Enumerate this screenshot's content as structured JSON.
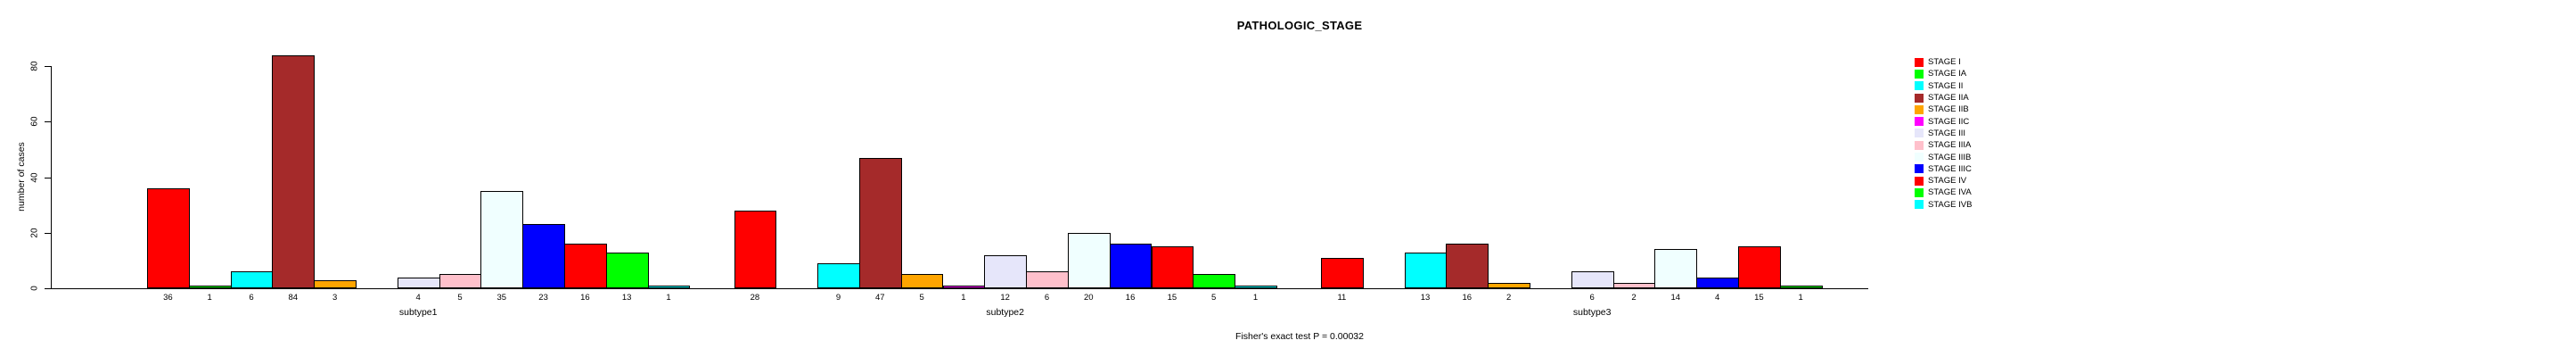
{
  "title": "PATHOLOGIC_STAGE",
  "footer": "Fisher's exact test P = 0.00032",
  "y_axis": {
    "label": "number of cases",
    "ticks": [
      0,
      20,
      40,
      60,
      80
    ],
    "max": 80
  },
  "legend": {
    "position": "right"
  },
  "chart_data": {
    "type": "bar",
    "title": "PATHOLOGIC_STAGE",
    "xlabel": "",
    "ylabel": "number of cases",
    "ylim": [
      0,
      80
    ],
    "grid": false,
    "legend_position": "right",
    "annotation": "Fisher's exact test P = 0.00032",
    "categories": [
      "subtype1",
      "subtype2",
      "subtype3"
    ],
    "series": [
      {
        "name": "STAGE I",
        "color": "#FF0000",
        "values": [
          36,
          28,
          11
        ]
      },
      {
        "name": "STAGE IA",
        "color": "#00FF00",
        "values": [
          1,
          0,
          0
        ]
      },
      {
        "name": "STAGE II",
        "color": "#00FFFF",
        "values": [
          6,
          9,
          13
        ]
      },
      {
        "name": "STAGE IIA",
        "color": "#A52A2A",
        "values": [
          84,
          47,
          16
        ]
      },
      {
        "name": "STAGE IIB",
        "color": "#FFA500",
        "values": [
          3,
          5,
          2
        ]
      },
      {
        "name": "STAGE IIC",
        "color": "#FF00FF",
        "values": [
          0,
          1,
          0
        ]
      },
      {
        "name": "STAGE III",
        "color": "#E6E6FA",
        "values": [
          4,
          12,
          6
        ]
      },
      {
        "name": "STAGE IIIA",
        "color": "#FFC0CB",
        "values": [
          5,
          6,
          2
        ]
      },
      {
        "name": "STAGE IIIB",
        "color": "#F0FFFF",
        "values": [
          35,
          20,
          14
        ]
      },
      {
        "name": "STAGE IIIC",
        "color": "#0000FF",
        "values": [
          23,
          16,
          4
        ]
      },
      {
        "name": "STAGE IV",
        "color": "#FF0000",
        "values": [
          16,
          15,
          15
        ]
      },
      {
        "name": "STAGE IVA",
        "color": "#00FF00",
        "values": [
          13,
          5,
          1
        ]
      },
      {
        "name": "STAGE IVB",
        "color": "#00FFFF",
        "values": [
          1,
          1,
          0
        ]
      }
    ]
  }
}
